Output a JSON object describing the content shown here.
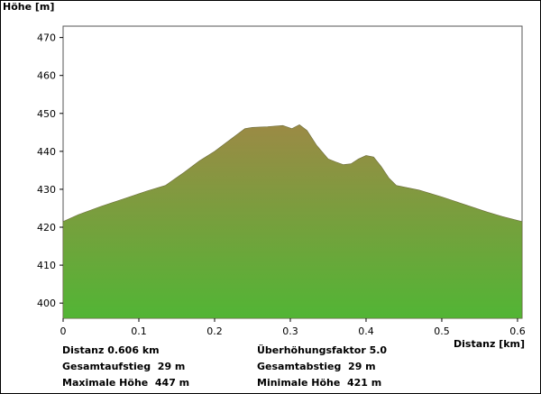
{
  "chart_data": {
    "type": "area",
    "ylabel": "Höhe [m]",
    "xlabel": "Distanz [km]",
    "xlim": [
      0,
      0.606
    ],
    "ylim": [
      396,
      473
    ],
    "x_ticks": [
      0,
      0.1,
      0.2,
      0.3,
      0.4,
      0.5,
      0.6
    ],
    "x_tick_labels": [
      "0",
      "0.1",
      "0.2",
      "0.3",
      "0.4",
      "0.5",
      "0.6"
    ],
    "y_ticks": [
      400,
      410,
      420,
      430,
      440,
      450,
      460,
      470
    ],
    "y_tick_labels": [
      "400",
      "410",
      "420",
      "430",
      "440",
      "450",
      "460",
      "470"
    ],
    "grid": false,
    "colors": {
      "top": "#9b8a45",
      "bottom": "#52b535"
    },
    "x": [
      0,
      0.02,
      0.05,
      0.08,
      0.11,
      0.135,
      0.16,
      0.18,
      0.2,
      0.22,
      0.24,
      0.25,
      0.27,
      0.29,
      0.302,
      0.312,
      0.322,
      0.335,
      0.35,
      0.36,
      0.37,
      0.38,
      0.39,
      0.4,
      0.41,
      0.42,
      0.43,
      0.44,
      0.45,
      0.47,
      0.5,
      0.53,
      0.56,
      0.58,
      0.606
    ],
    "y": [
      421.5,
      423.3,
      425.5,
      427.5,
      429.5,
      431.0,
      434.5,
      437.5,
      440.0,
      443.0,
      446.0,
      446.3,
      446.5,
      446.8,
      446.0,
      447.0,
      445.5,
      441.5,
      438.0,
      437.2,
      436.5,
      436.7,
      438.0,
      438.9,
      438.5,
      436.0,
      433.0,
      431.0,
      430.6,
      429.8,
      428.0,
      426.0,
      424.0,
      422.8,
      421.5
    ]
  },
  "stats": {
    "distanz": "Distanz 0.606 km",
    "gesamtaufstieg": "Gesamtaufstieg  29 m",
    "maximale_hoehe": "Maximale Höhe  447 m",
    "ueberhoehungsfaktor": "Überhöhungsfaktor 5.0",
    "gesamtabstieg": "Gesamtabstieg  29 m",
    "minimale_hoehe": "Minimale Höhe  421 m"
  }
}
